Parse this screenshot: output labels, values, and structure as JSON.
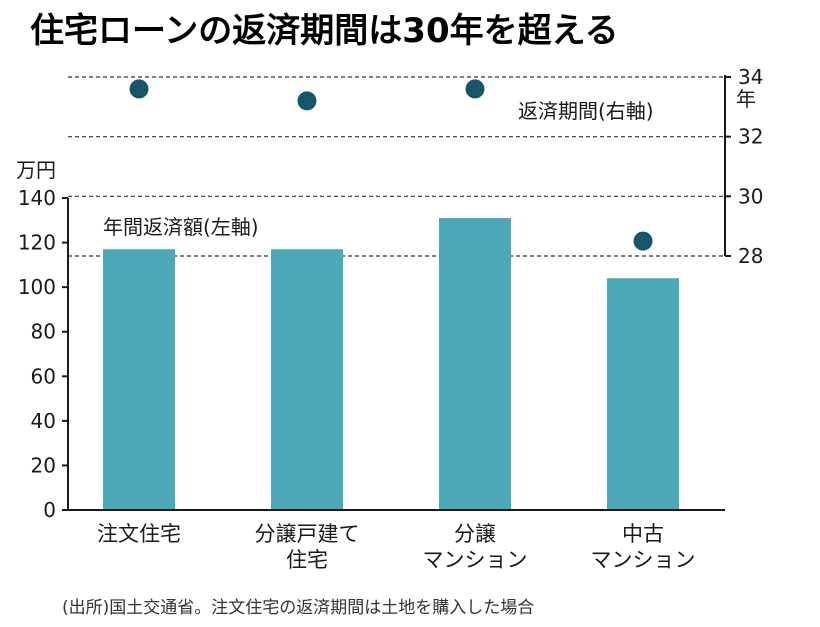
{
  "chart_data": {
    "type": "bar",
    "title": "住宅ローンの返済期間は30年を超える",
    "categories": [
      [
        "注文住宅"
      ],
      [
        "分譲戸建て",
        "住宅"
      ],
      [
        "分譲",
        "マンション"
      ],
      [
        "中古",
        "マンション"
      ]
    ],
    "series": [
      {
        "name": "年間返済額(左軸)",
        "kind": "bar",
        "axis": "left",
        "values": [
          117,
          117,
          131,
          104
        ]
      },
      {
        "name": "返済期間(右軸)",
        "kind": "scatter",
        "axis": "right",
        "values": [
          33.6,
          33.2,
          33.6,
          28.5
        ]
      }
    ],
    "left_axis": {
      "unit": "万円",
      "ylim": [
        0,
        140
      ],
      "ticks": [
        0,
        20,
        40,
        60,
        80,
        100,
        120,
        140
      ]
    },
    "right_axis": {
      "unit": "年",
      "ylim": [
        28,
        34
      ],
      "ticks": [
        28,
        30,
        32,
        34
      ]
    },
    "source": "(出所)国土交通省。注文住宅の返済期間は土地を購入した場合",
    "colors": {
      "bar": "#4aa8b8",
      "dot": "#17556a",
      "axis": "#1a1a1a",
      "grid": "#333333"
    }
  }
}
